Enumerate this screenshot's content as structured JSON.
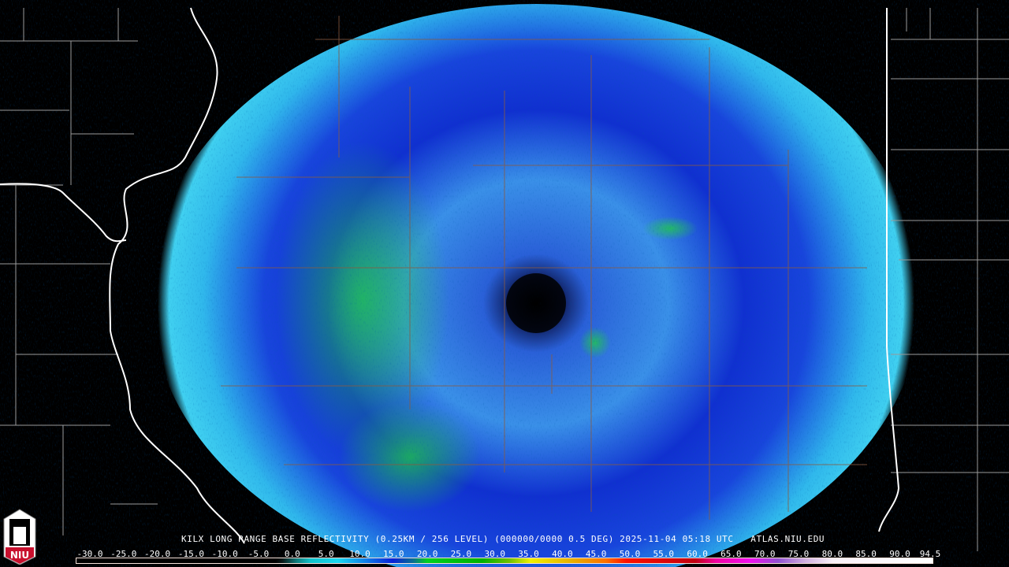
{
  "radar": {
    "site": "KILX",
    "caption": "KILX LONG RANGE BASE REFLECTIVITY (0.25KM / 256 LEVEL) (000000/0000 0.5 DEG) 2025-11-04 05:18 UTC   ATLAS.NIU.EDU",
    "product": "Long Range Base Reflectivity",
    "elevation_deg": 0.5,
    "datetime_utc": "2025-11-04 05:18"
  },
  "colorbar": {
    "min": -30.0,
    "max": 94.5,
    "labels": [
      "-30.0",
      "-25.0",
      "-20.0",
      "-15.0",
      "-10.0",
      "-5.0",
      "0.0",
      "5.0",
      "10.0",
      "15.0",
      "20.0",
      "25.0",
      "30.0",
      "35.0",
      "40.0",
      "45.0",
      "50.0",
      "55.0",
      "60.0",
      "65.0",
      "70.0",
      "75.0",
      "80.0",
      "85.0",
      "90.0",
      "94.5"
    ],
    "stops": [
      {
        "v": -30,
        "c": "#000000"
      },
      {
        "v": -1,
        "c": "#000000"
      },
      {
        "v": 0,
        "c": "#0a1a1a"
      },
      {
        "v": 2,
        "c": "#0f7a7a"
      },
      {
        "v": 4,
        "c": "#10c0c8"
      },
      {
        "v": 8,
        "c": "#18d8f0"
      },
      {
        "v": 12,
        "c": "#1080e8"
      },
      {
        "v": 16,
        "c": "#0820d8"
      },
      {
        "v": 19,
        "c": "#0a7090"
      },
      {
        "v": 21,
        "c": "#00d020"
      },
      {
        "v": 29,
        "c": "#00b000"
      },
      {
        "v": 33,
        "c": "#70c000"
      },
      {
        "v": 36,
        "c": "#f0f000"
      },
      {
        "v": 42,
        "c": "#e8b000"
      },
      {
        "v": 47,
        "c": "#ff7000"
      },
      {
        "v": 50,
        "c": "#ff1000"
      },
      {
        "v": 60,
        "c": "#c00010"
      },
      {
        "v": 63,
        "c": "#f000a0"
      },
      {
        "v": 68,
        "c": "#f010f0"
      },
      {
        "v": 72,
        "c": "#9050d0"
      },
      {
        "v": 76,
        "c": "#d0b0e0"
      },
      {
        "v": 80,
        "c": "#f8f0f8"
      },
      {
        "v": 94.5,
        "c": "#ffffff"
      }
    ]
  },
  "logo": {
    "text": "NIU",
    "color": "#c8102e"
  }
}
